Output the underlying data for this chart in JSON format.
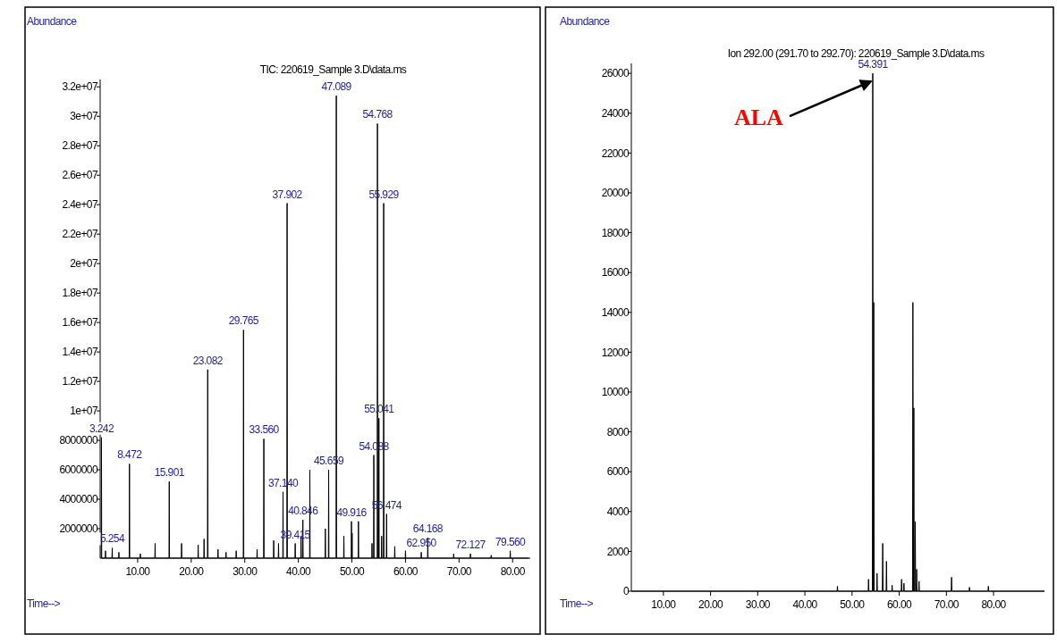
{
  "chart_data": [
    {
      "type": "line",
      "title": "TIC: 220619_Sample 3.D\\data.ms",
      "xlabel": "Time-->",
      "ylabel": "Abundance",
      "xlim": [
        3.0,
        83.3
      ],
      "ylim": [
        0,
        32500000
      ],
      "xticks": [
        {
          "value": 10,
          "label": "10.00"
        },
        {
          "value": 20,
          "label": "20.00"
        },
        {
          "value": 30,
          "label": "30.00"
        },
        {
          "value": 40,
          "label": "40.00"
        },
        {
          "value": 50,
          "label": "50.00"
        },
        {
          "value": 60,
          "label": "60.00"
        },
        {
          "value": 70,
          "label": "70.00"
        },
        {
          "value": 80,
          "label": "80.00"
        }
      ],
      "yticks": [
        2000000,
        4000000,
        6000000,
        8000000,
        {
          "value": 10000000,
          "label": "1e+07"
        },
        {
          "value": 12000000,
          "label": "1.2e+07"
        },
        {
          "value": 14000000,
          "label": "1.4e+07"
        },
        {
          "value": 16000000,
          "label": "1.6e+07"
        },
        {
          "value": 18000000,
          "label": "1.8e+07"
        },
        {
          "value": 20000000,
          "label": "2e+07"
        },
        {
          "value": 22000000,
          "label": "2.2e+07"
        },
        {
          "value": 24000000,
          "label": "2.4e+07"
        },
        {
          "value": 26000000,
          "label": "2.6e+07"
        },
        {
          "value": 28000000,
          "label": "2.8e+07"
        },
        {
          "value": 30000000,
          "label": "3e+07"
        },
        {
          "value": 32000000,
          "label": "3.2e+07"
        }
      ],
      "grid": false,
      "marker": "none",
      "line_style": "solid",
      "annotations": [
        {
          "text": "3.242",
          "x": 3.242,
          "y": 8200000
        },
        {
          "text": "5.254",
          "x": 5.254,
          "y": 700000
        },
        {
          "text": "8.472",
          "x": 8.472,
          "y": 6400000
        },
        {
          "text": "15.901",
          "x": 15.901,
          "y": 5200000
        },
        {
          "text": "23.082",
          "x": 23.082,
          "y": 12800000
        },
        {
          "text": "29.765",
          "x": 29.765,
          "y": 15500000
        },
        {
          "text": "33.560",
          "x": 33.56,
          "y": 8100000
        },
        {
          "text": "37.140",
          "x": 37.14,
          "y": 4500000
        },
        {
          "text": "37.902",
          "x": 37.902,
          "y": 24100000
        },
        {
          "text": "39.415",
          "x": 39.415,
          "y": 1000000
        },
        {
          "text": "40.846",
          "x": 40.846,
          "y": 2600000
        },
        {
          "text": "45.659",
          "x": 45.659,
          "y": 6000000
        },
        {
          "text": "47.089",
          "x": 47.089,
          "y": 31400000
        },
        {
          "text": "49.916",
          "x": 49.916,
          "y": 2500000
        },
        {
          "text": "54.088",
          "x": 54.088,
          "y": 7000000
        },
        {
          "text": "54.768",
          "x": 54.768,
          "y": 29500000
        },
        {
          "text": "55.041",
          "x": 55.041,
          "y": 9500000
        },
        {
          "text": "55.929",
          "x": 55.929,
          "y": 24100000
        },
        {
          "text": "56.474",
          "x": 56.474,
          "y": 3000000
        },
        {
          "text": "62.950",
          "x": 62.95,
          "y": 400000
        },
        {
          "text": "64.168",
          "x": 64.168,
          "y": 1400000
        },
        {
          "text": "72.127",
          "x": 72.127,
          "y": 300000
        },
        {
          "text": "79.560",
          "x": 79.56,
          "y": 500000
        }
      ],
      "series": [
        {
          "color": "#000000",
          "x": [
            3.192,
            3.242,
            3.292,
            3.95,
            4.0,
            4.05,
            5.204,
            5.254,
            5.304,
            6.45,
            6.5,
            6.55,
            8.422,
            8.472,
            8.522,
            10.45,
            10.5,
            10.55,
            13.208,
            13.258,
            13.308,
            15.851,
            15.901,
            15.951,
            18.15,
            18.2,
            18.25,
            21.25,
            21.3,
            21.35,
            22.35,
            22.4,
            22.45,
            23.032,
            23.082,
            23.132,
            24.95,
            25.0,
            25.05,
            26.45,
            26.5,
            26.55,
            28.35,
            28.4,
            28.45,
            29.715,
            29.765,
            29.815,
            32.25,
            32.3,
            32.35,
            33.51,
            33.56,
            33.61,
            35.35,
            35.4,
            35.45,
            36.25,
            36.3,
            36.35,
            37.09,
            37.14,
            37.19,
            37.852,
            37.902,
            37.952,
            39.365,
            39.415,
            39.465,
            40.46,
            40.51,
            40.56,
            40.796,
            40.846,
            40.896,
            42.1,
            42.15,
            42.2,
            44.99,
            45.04,
            45.09,
            45.609,
            45.659,
            45.709,
            47.039,
            47.089,
            47.139,
            48.45,
            48.5,
            48.55,
            49.876,
            49.916,
            49.956,
            49.999,
            50.039,
            50.079,
            51.17,
            51.22,
            51.27,
            53.7,
            53.75,
            53.8,
            54.038,
            54.088,
            54.138,
            54.718,
            54.768,
            54.818,
            54.991,
            55.041,
            55.091,
            55.5,
            55.55,
            55.6,
            55.879,
            55.929,
            55.979,
            56.424,
            56.474,
            56.524,
            57.95,
            58.0,
            58.05,
            59.95,
            60.0,
            60.05,
            62.9,
            62.95,
            63.0,
            64.118,
            64.168,
            64.218,
            68.95,
            69.0,
            69.05,
            72.077,
            72.127,
            72.177,
            75.95,
            76.0,
            76.05,
            79.51,
            79.56,
            79.61,
            83.0
          ],
          "values": [
            0,
            8200000,
            0,
            0,
            500000,
            0,
            0,
            700000,
            0,
            0,
            400000,
            0,
            0,
            6400000,
            0,
            0,
            300000,
            0,
            0,
            1000000,
            0,
            0,
            5200000,
            0,
            0,
            1000000,
            0,
            0,
            900000,
            0,
            0,
            1300000,
            0,
            0,
            12800000,
            0,
            0,
            600000,
            0,
            0,
            400000,
            0,
            0,
            500000,
            0,
            0,
            15500000,
            0,
            0,
            600000,
            0,
            0,
            8100000,
            0,
            0,
            1200000,
            0,
            0,
            1000000,
            0,
            0,
            4500000,
            0,
            0,
            24100000,
            0,
            0,
            1000000,
            0,
            0,
            1500000,
            0,
            0,
            2600000,
            0,
            0,
            6000000,
            0,
            0,
            2000000,
            0,
            0,
            6000000,
            0,
            0,
            31400000,
            0,
            0,
            1500000,
            0,
            0,
            2500000,
            0,
            0,
            1700000,
            0,
            0,
            2500000,
            0,
            0,
            1000000,
            0,
            0,
            7000000,
            0,
            0,
            29500000,
            0,
            0,
            9500000,
            0,
            0,
            1500000,
            0,
            0,
            24100000,
            0,
            0,
            3000000,
            0,
            0,
            800000,
            0,
            0,
            500000,
            0,
            0,
            400000,
            0,
            0,
            1400000,
            0,
            0,
            300000,
            0,
            0,
            300000,
            0,
            0,
            200000,
            0,
            0,
            500000,
            0,
            0
          ]
        }
      ]
    },
    {
      "type": "line",
      "title": "Ion 292.00 (291.70 to 292.70): 220619_Sample 3.D\\data.ms",
      "xlabel": "Time-->",
      "ylabel": "Abundance",
      "xlim": [
        3.2,
        90.8
      ],
      "ylim": [
        0,
        26500
      ],
      "xticks": [
        {
          "value": 10,
          "label": "10.00"
        },
        {
          "value": 20,
          "label": "20.00"
        },
        {
          "value": 30,
          "label": "30.00"
        },
        {
          "value": 40,
          "label": "40.00"
        },
        {
          "value": 50,
          "label": "50.00"
        },
        {
          "value": 60,
          "label": "60.00"
        },
        {
          "value": 70,
          "label": "70.00"
        },
        {
          "value": 80,
          "label": "80.00"
        }
      ],
      "yticks": [
        0,
        2000,
        4000,
        6000,
        8000,
        10000,
        12000,
        14000,
        16000,
        18000,
        20000,
        22000,
        24000,
        26000
      ],
      "grid": false,
      "marker": "none",
      "line_style": "solid",
      "annotations": [
        {
          "text": "54.391",
          "x": 54.391,
          "y": 26000
        },
        "ALA"
      ],
      "series": [
        {
          "color": "#000000",
          "x": [
            3.2,
            46.82,
            46.9,
            46.98,
            53.42,
            53.5,
            53.58,
            54.311,
            54.391,
            54.471,
            54.52,
            54.6,
            54.68,
            55.22,
            55.3,
            55.38,
            56.42,
            56.5,
            56.58,
            57.22,
            57.3,
            57.38,
            58.42,
            58.5,
            58.58,
            60.42,
            60.5,
            60.58,
            60.92,
            61.0,
            61.08,
            62.82,
            62.9,
            62.98,
            63.02,
            63.1,
            63.18,
            63.32,
            63.4,
            63.48,
            63.62,
            63.7,
            63.78,
            64.12,
            64.2,
            64.28,
            71.02,
            71.1,
            71.18,
            74.82,
            74.9,
            74.98,
            78.82,
            78.9,
            78.98,
            90.8
          ],
          "values": [
            0,
            0,
            250,
            0,
            0,
            600,
            0,
            0,
            26000,
            0,
            0,
            14500,
            0,
            0,
            900,
            0,
            0,
            2400,
            0,
            0,
            1500,
            0,
            0,
            300,
            0,
            0,
            600,
            0,
            0,
            400,
            0,
            0,
            14500,
            0,
            0,
            9200,
            0,
            0,
            3500,
            0,
            0,
            1100,
            0,
            0,
            500,
            0,
            0,
            700,
            0,
            0,
            200,
            0,
            0,
            250,
            0,
            0
          ]
        }
      ]
    }
  ]
}
